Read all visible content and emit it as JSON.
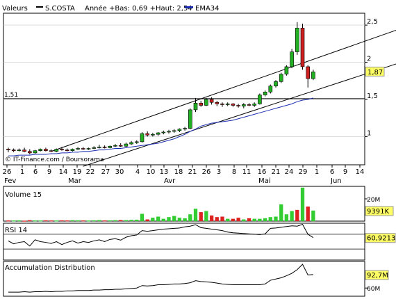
{
  "header": {
    "label": "Valeurs",
    "symbol": "S.COSTA",
    "range_text": "Année +Bas: 0,69 +Haut: 2,54",
    "ema_label": "EMA34",
    "ema_color": "#1c2eb0"
  },
  "copyright": "© IT-Finance.com / Boursorama",
  "colors": {
    "up": "#22b022",
    "down": "#cc1f1f",
    "volume_up": "#33cc33",
    "volume_down": "#dd2222"
  },
  "chart_data": [
    {
      "type": "candlestick",
      "title": "",
      "ylim": [
        0.62,
        2.66
      ],
      "y_ticks": [
        {
          "value": 1,
          "label": "1"
        },
        {
          "value": 1.5,
          "label": "1,5"
        },
        {
          "value": 2,
          "label": "2"
        },
        {
          "value": 2.5,
          "label": "2,5"
        }
      ],
      "x_ticks": [
        "26",
        "1",
        "6",
        "9",
        "14",
        "19",
        "22",
        "27",
        "30",
        "4",
        "10",
        "13",
        "18",
        "21",
        "26",
        "3",
        "8",
        "11",
        "16",
        "21",
        "24",
        "29",
        "1",
        "6",
        "9",
        "14"
      ],
      "months": [
        "Fev",
        "Mar",
        "Avr",
        "Mai",
        "Jun"
      ],
      "reference_line": {
        "value": 1.51,
        "label": "1,51"
      },
      "last_value": {
        "value": 1.87,
        "label": "1,87"
      },
      "candles": [
        {
          "o": 0.83,
          "h": 0.85,
          "l": 0.79,
          "c": 0.82
        },
        {
          "o": 0.82,
          "h": 0.84,
          "l": 0.79,
          "c": 0.81
        },
        {
          "o": 0.81,
          "h": 0.84,
          "l": 0.8,
          "c": 0.82
        },
        {
          "o": 0.82,
          "h": 0.85,
          "l": 0.79,
          "c": 0.8
        },
        {
          "o": 0.8,
          "h": 0.83,
          "l": 0.76,
          "c": 0.78
        },
        {
          "o": 0.78,
          "h": 0.82,
          "l": 0.77,
          "c": 0.81
        },
        {
          "o": 0.81,
          "h": 0.84,
          "l": 0.8,
          "c": 0.83
        },
        {
          "o": 0.83,
          "h": 0.85,
          "l": 0.8,
          "c": 0.81
        },
        {
          "o": 0.81,
          "h": 0.83,
          "l": 0.79,
          "c": 0.8
        },
        {
          "o": 0.8,
          "h": 0.84,
          "l": 0.79,
          "c": 0.83
        },
        {
          "o": 0.83,
          "h": 0.86,
          "l": 0.81,
          "c": 0.82
        },
        {
          "o": 0.82,
          "h": 0.84,
          "l": 0.8,
          "c": 0.81
        },
        {
          "o": 0.81,
          "h": 0.84,
          "l": 0.8,
          "c": 0.83
        },
        {
          "o": 0.83,
          "h": 0.86,
          "l": 0.82,
          "c": 0.84
        },
        {
          "o": 0.84,
          "h": 0.86,
          "l": 0.82,
          "c": 0.83
        },
        {
          "o": 0.83,
          "h": 0.85,
          "l": 0.82,
          "c": 0.84
        },
        {
          "o": 0.84,
          "h": 0.87,
          "l": 0.83,
          "c": 0.85
        },
        {
          "o": 0.85,
          "h": 0.89,
          "l": 0.84,
          "c": 0.86
        },
        {
          "o": 0.86,
          "h": 0.88,
          "l": 0.84,
          "c": 0.85
        },
        {
          "o": 0.85,
          "h": 0.88,
          "l": 0.84,
          "c": 0.87
        },
        {
          "o": 0.87,
          "h": 0.9,
          "l": 0.86,
          "c": 0.88
        },
        {
          "o": 0.88,
          "h": 0.91,
          "l": 0.86,
          "c": 0.87
        },
        {
          "o": 0.87,
          "h": 0.92,
          "l": 0.86,
          "c": 0.9
        },
        {
          "o": 0.9,
          "h": 0.94,
          "l": 0.89,
          "c": 0.92
        },
        {
          "o": 0.92,
          "h": 0.95,
          "l": 0.9,
          "c": 0.93
        },
        {
          "o": 0.93,
          "h": 1.06,
          "l": 0.92,
          "c": 1.04
        },
        {
          "o": 1.04,
          "h": 1.07,
          "l": 1.0,
          "c": 1.02
        },
        {
          "o": 1.02,
          "h": 1.05,
          "l": 1.0,
          "c": 1.03
        },
        {
          "o": 1.03,
          "h": 1.06,
          "l": 1.01,
          "c": 1.05
        },
        {
          "o": 1.05,
          "h": 1.08,
          "l": 1.03,
          "c": 1.06
        },
        {
          "o": 1.06,
          "h": 1.09,
          "l": 1.04,
          "c": 1.07
        },
        {
          "o": 1.07,
          "h": 1.1,
          "l": 1.05,
          "c": 1.08
        },
        {
          "o": 1.08,
          "h": 1.11,
          "l": 1.06,
          "c": 1.1
        },
        {
          "o": 1.1,
          "h": 1.13,
          "l": 1.08,
          "c": 1.11
        },
        {
          "o": 1.11,
          "h": 1.38,
          "l": 1.1,
          "c": 1.36
        },
        {
          "o": 1.36,
          "h": 1.52,
          "l": 1.33,
          "c": 1.45
        },
        {
          "o": 1.45,
          "h": 1.48,
          "l": 1.4,
          "c": 1.42
        },
        {
          "o": 1.42,
          "h": 1.52,
          "l": 1.41,
          "c": 1.5
        },
        {
          "o": 1.5,
          "h": 1.53,
          "l": 1.43,
          "c": 1.46
        },
        {
          "o": 1.46,
          "h": 1.48,
          "l": 1.41,
          "c": 1.44
        },
        {
          "o": 1.44,
          "h": 1.46,
          "l": 1.4,
          "c": 1.43
        },
        {
          "o": 1.43,
          "h": 1.46,
          "l": 1.41,
          "c": 1.44
        },
        {
          "o": 1.44,
          "h": 1.45,
          "l": 1.4,
          "c": 1.42
        },
        {
          "o": 1.42,
          "h": 1.44,
          "l": 1.39,
          "c": 1.41
        },
        {
          "o": 1.41,
          "h": 1.45,
          "l": 1.38,
          "c": 1.43
        },
        {
          "o": 1.43,
          "h": 1.45,
          "l": 1.41,
          "c": 1.42
        },
        {
          "o": 1.42,
          "h": 1.46,
          "l": 1.4,
          "c": 1.44
        },
        {
          "o": 1.44,
          "h": 1.58,
          "l": 1.43,
          "c": 1.56
        },
        {
          "o": 1.56,
          "h": 1.62,
          "l": 1.54,
          "c": 1.6
        },
        {
          "o": 1.6,
          "h": 1.7,
          "l": 1.58,
          "c": 1.68
        },
        {
          "o": 1.68,
          "h": 1.76,
          "l": 1.66,
          "c": 1.74
        },
        {
          "o": 1.74,
          "h": 1.86,
          "l": 1.72,
          "c": 1.84
        },
        {
          "o": 1.84,
          "h": 1.96,
          "l": 1.82,
          "c": 1.94
        },
        {
          "o": 1.94,
          "h": 2.18,
          "l": 1.92,
          "c": 2.14
        },
        {
          "o": 2.14,
          "h": 2.54,
          "l": 2.1,
          "c": 2.46
        },
        {
          "o": 2.46,
          "h": 2.52,
          "l": 1.9,
          "c": 1.94
        },
        {
          "o": 1.94,
          "h": 1.96,
          "l": 1.66,
          "c": 1.78
        },
        {
          "o": 1.78,
          "h": 1.9,
          "l": 1.76,
          "c": 1.87
        }
      ],
      "ema": [
        0.74,
        0.74,
        0.75,
        0.75,
        0.75,
        0.76,
        0.76,
        0.76,
        0.77,
        0.77,
        0.78,
        0.78,
        0.79,
        0.79,
        0.8,
        0.8,
        0.81,
        0.82,
        0.82,
        0.83,
        0.84,
        0.84,
        0.85,
        0.86,
        0.87,
        0.88,
        0.89,
        0.9,
        0.91,
        0.93,
        0.95,
        0.97,
        1.0,
        1.03,
        1.07,
        1.1,
        1.14,
        1.16,
        1.18,
        1.19,
        1.2,
        1.21,
        1.22,
        1.24,
        1.26,
        1.28,
        1.3,
        1.32,
        1.34,
        1.36,
        1.38,
        1.4,
        1.42,
        1.44,
        1.47,
        1.49,
        1.5,
        1.52
      ],
      "channel_lines": [
        {
          "from": {
            "i": 8,
            "v": 0.8
          },
          "to": {
            "i": 76,
            "v": 2.52
          }
        },
        {
          "from": {
            "i": 14,
            "v": 0.6
          },
          "to": {
            "i": 76,
            "v": 2.06
          }
        }
      ]
    },
    {
      "type": "bar",
      "title": "Volume 15",
      "ylim": [
        0,
        30
      ],
      "y_ticks": [
        {
          "value": 20,
          "label": "20M"
        }
      ],
      "last_value": {
        "value": 9.391,
        "label": "9391K"
      },
      "values": [
        0.5,
        0.4,
        0.6,
        0.3,
        0.7,
        0.5,
        0.4,
        0.6,
        0.5,
        0.4,
        0.6,
        0.5,
        0.7,
        0.6,
        0.5,
        0.4,
        0.6,
        0.8,
        0.5,
        0.6,
        0.7,
        0.9,
        0.8,
        1.0,
        1.2,
        6.5,
        1.5,
        3.0,
        4.0,
        2.0,
        3.5,
        4.5,
        3.0,
        2.5,
        6.0,
        11.0,
        8.0,
        9.0,
        5.0,
        3.5,
        4.0,
        2.0,
        2.0,
        3.0,
        1.5,
        2.5,
        2.0,
        2.0,
        2.5,
        3.5,
        4.0,
        15.0,
        6.0,
        9.0,
        10.0,
        30.0,
        13.0,
        9.4
      ],
      "up": [
        0,
        1,
        1,
        0,
        0,
        1,
        1,
        0,
        0,
        1,
        0,
        0,
        1,
        1,
        0,
        1,
        1,
        1,
        0,
        1,
        1,
        0,
        1,
        1,
        1,
        1,
        0,
        1,
        1,
        1,
        1,
        1,
        1,
        1,
        1,
        1,
        0,
        1,
        0,
        0,
        0,
        1,
        0,
        0,
        1,
        0,
        1,
        1,
        1,
        1,
        1,
        1,
        1,
        1,
        0,
        1,
        0,
        1
      ]
    },
    {
      "type": "line",
      "title": "RSI 14",
      "ylim": [
        0,
        100
      ],
      "ref_lines": [
        70,
        30
      ],
      "last_value": {
        "value": 60.9213,
        "label": "60,9213"
      },
      "values": [
        52,
        44,
        48,
        50,
        38,
        55,
        50,
        48,
        45,
        50,
        42,
        48,
        52,
        46,
        50,
        48,
        52,
        55,
        50,
        56,
        58,
        54,
        62,
        66,
        68,
        80,
        78,
        80,
        82,
        84,
        85,
        86,
        87,
        90,
        92,
        96,
        88,
        86,
        84,
        82,
        80,
        76,
        74,
        73,
        72,
        71,
        70,
        69,
        71,
        86,
        87,
        89,
        91,
        93,
        92,
        97,
        70,
        61
      ]
    },
    {
      "type": "line",
      "title": "Accumulation Distribution",
      "ylim": [
        40,
        125
      ],
      "y_ticks": [
        {
          "value": 60,
          "label": "60M"
        }
      ],
      "last_value": {
        "value": 92.7,
        "label": "92,7M"
      },
      "values": [
        50,
        50,
        50,
        51,
        50,
        51,
        51,
        52,
        51,
        52,
        52,
        53,
        53,
        54,
        54,
        54,
        55,
        55,
        56,
        56,
        57,
        57,
        58,
        59,
        60,
        66,
        65,
        66,
        68,
        68,
        69,
        70,
        70,
        71,
        73,
        78,
        76,
        75,
        74,
        72,
        70,
        69,
        68,
        68,
        68,
        68,
        68,
        68,
        70,
        79,
        82,
        85,
        90,
        96,
        105,
        118,
        92,
        93
      ]
    }
  ]
}
